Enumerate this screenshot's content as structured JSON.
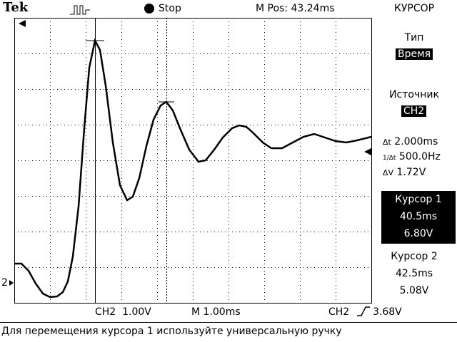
{
  "header": {
    "brand": "Tek",
    "status": "Stop",
    "position": "M Pos: 43.24ms",
    "menu_title": "КУРСОР"
  },
  "side_menu": {
    "type_label": "Тип",
    "type_value": "Время",
    "source_label": "Источник",
    "source_value": "CH2",
    "readouts": [
      {
        "symbol": "Δt",
        "value": "2.000ms"
      },
      {
        "symbol": "1/Δt",
        "value": "500.0Hz"
      },
      {
        "symbol": "ΔV",
        "value": "1.72V"
      }
    ],
    "cursor1": {
      "label": "Курсор 1",
      "time": "40.5ms",
      "voltage": "6.80V"
    },
    "cursor2": {
      "label": "Курсор 2",
      "time": "42.5ms",
      "voltage": "5.08V"
    }
  },
  "status_bar": {
    "channel_scale": "CH2  1.00V",
    "timebase": "M 1.00ms",
    "trigger_source": "CH2",
    "trigger_level": "3.68V"
  },
  "channel_marker": "2",
  "message": "Для перемещения курсора 1 используйте универсальную ручку"
}
